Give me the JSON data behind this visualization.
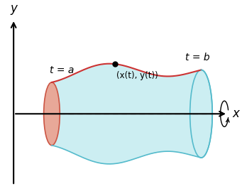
{
  "bg_color": "#ffffff",
  "surface_fill_color": "#cceef2",
  "surface_edge_top_color": "#cc3333",
  "surface_edge_bottom_color": "#55bbcc",
  "left_ellipse_fill": "#e8a898",
  "left_ellipse_edge": "#cc5544",
  "right_ellipse_fill": "#cceef2",
  "right_ellipse_edge": "#55bbcc",
  "dashed_line_color": "#999999",
  "axis_color": "#000000",
  "point_color": "#000000",
  "label_color": "#000000",
  "t_a_label": "t = a",
  "t_b_label": "t = b",
  "point_label": "(x(t), y(t))",
  "xlabel": "x",
  "ylabel": "y",
  "figsize": [
    3.41,
    2.76
  ],
  "dpi": 100
}
